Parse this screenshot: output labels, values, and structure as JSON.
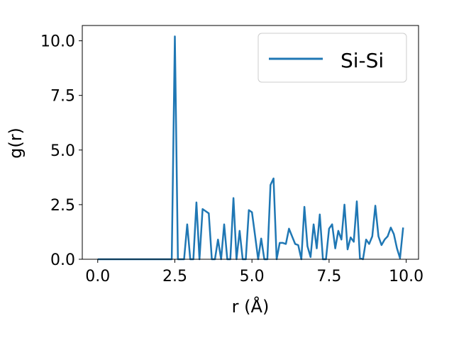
{
  "chart_data": {
    "type": "line",
    "title": "",
    "xlabel": "r (Å)",
    "ylabel": "g(r)",
    "xlim": [
      -0.5,
      10.4
    ],
    "ylim": [
      0,
      10.7
    ],
    "xticks": [
      0.0,
      2.5,
      5.0,
      7.5,
      10.0
    ],
    "xtick_labels": [
      "0.0",
      "2.5",
      "5.0",
      "7.5",
      "10.0"
    ],
    "yticks": [
      0.0,
      2.5,
      5.0,
      7.5,
      10.0
    ],
    "ytick_labels": [
      "0.0",
      "2.5",
      "5.0",
      "7.5",
      "10.0"
    ],
    "grid": false,
    "legend_position": "top-right",
    "series": [
      {
        "name": "Si-Si",
        "color": "#1f77b4",
        "x": [
          0.0,
          0.1,
          0.2,
          0.3,
          0.4,
          0.5,
          0.6,
          0.7,
          0.8,
          0.9,
          1.0,
          1.1,
          1.2,
          1.3,
          1.4,
          1.5,
          1.6,
          1.7,
          1.8,
          1.9,
          2.0,
          2.1,
          2.2,
          2.3,
          2.4,
          2.5,
          2.6,
          2.7,
          2.8,
          2.9,
          3.0,
          3.1,
          3.2,
          3.3,
          3.4,
          3.5,
          3.6,
          3.7,
          3.8,
          3.9,
          4.0,
          4.1,
          4.2,
          4.3,
          4.4,
          4.5,
          4.6,
          4.7,
          4.8,
          4.9,
          5.0,
          5.1,
          5.2,
          5.3,
          5.4,
          5.5,
          5.6,
          5.7,
          5.8,
          5.9,
          6.0,
          6.1,
          6.2,
          6.3,
          6.4,
          6.5,
          6.6,
          6.7,
          6.8,
          6.9,
          7.0,
          7.1,
          7.2,
          7.3,
          7.4,
          7.5,
          7.6,
          7.7,
          7.8,
          7.9,
          8.0,
          8.1,
          8.2,
          8.3,
          8.4,
          8.5,
          8.6,
          8.7,
          8.8,
          8.9,
          9.0,
          9.1,
          9.2,
          9.3,
          9.4,
          9.5,
          9.6,
          9.7,
          9.8,
          9.9
        ],
        "y": [
          0,
          0,
          0,
          0,
          0,
          0,
          0,
          0,
          0,
          0,
          0,
          0,
          0,
          0,
          0,
          0,
          0,
          0,
          0,
          0,
          0,
          0,
          0,
          0,
          0,
          10.2,
          0,
          0,
          0,
          1.6,
          0,
          0,
          2.6,
          0,
          2.3,
          2.2,
          2.1,
          0,
          0,
          0.9,
          0,
          1.6,
          0,
          0,
          2.8,
          0,
          1.3,
          0,
          0,
          2.25,
          2.15,
          1.1,
          0,
          0.95,
          0,
          0,
          3.4,
          3.7,
          0,
          0.75,
          0.75,
          0.7,
          1.4,
          1.05,
          0.7,
          0.65,
          0,
          2.4,
          0.6,
          0.1,
          1.6,
          0.5,
          2.05,
          0,
          0,
          1.4,
          1.6,
          0.5,
          1.3,
          0.9,
          2.5,
          0.45,
          1.0,
          0.8,
          2.65,
          0.05,
          0,
          0.9,
          0.7,
          1.05,
          2.45,
          1.05,
          0.65,
          0.9,
          1.05,
          1.45,
          1.15,
          0.5,
          0.05,
          1.45
        ]
      }
    ]
  }
}
